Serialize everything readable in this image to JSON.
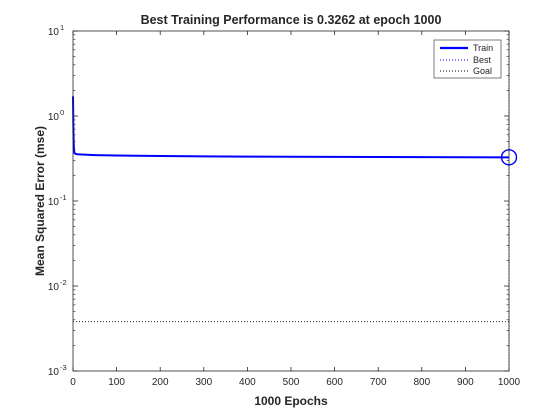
{
  "chart_data": {
    "type": "line",
    "title": "Best Training Performance is 0.3262 at epoch 1000",
    "xlabel": "1000 Epochs",
    "ylabel": "Mean Squared Error  (mse)",
    "xlim": [
      0,
      1000
    ],
    "ylim": [
      0.001,
      10
    ],
    "yscale": "log",
    "x_ticks": [
      0,
      100,
      200,
      300,
      400,
      500,
      600,
      700,
      800,
      900,
      1000
    ],
    "y_ticks": [
      {
        "value": 0.001,
        "base": "10",
        "exp": "-3"
      },
      {
        "value": 0.01,
        "base": "10",
        "exp": "-2"
      },
      {
        "value": 0.1,
        "base": "10",
        "exp": "-1"
      },
      {
        "value": 1,
        "base": "10",
        "exp": "0"
      },
      {
        "value": 10,
        "base": "10",
        "exp": "1"
      }
    ],
    "grid": false,
    "legend_position": "top-right",
    "series": [
      {
        "name": "Train",
        "color": "#0000ff",
        "style": "solid",
        "x": [
          0,
          1,
          2,
          3,
          5,
          10,
          20,
          50,
          100,
          200,
          300,
          400,
          500,
          600,
          700,
          800,
          900,
          1000
        ],
        "y": [
          1.7,
          0.62,
          0.42,
          0.37,
          0.36,
          0.355,
          0.352,
          0.347,
          0.343,
          0.338,
          0.335,
          0.333,
          0.331,
          0.33,
          0.329,
          0.328,
          0.327,
          0.3262
        ]
      },
      {
        "name": "Best",
        "color": "#0000ff",
        "style": "dotted",
        "vertical_x": 1000
      },
      {
        "name": "Goal",
        "color": "#000000",
        "style": "dotted",
        "horizontal_y": 0.0038
      }
    ],
    "best_point": {
      "x": 1000,
      "y": 0.3262,
      "color": "#0000ff"
    }
  }
}
